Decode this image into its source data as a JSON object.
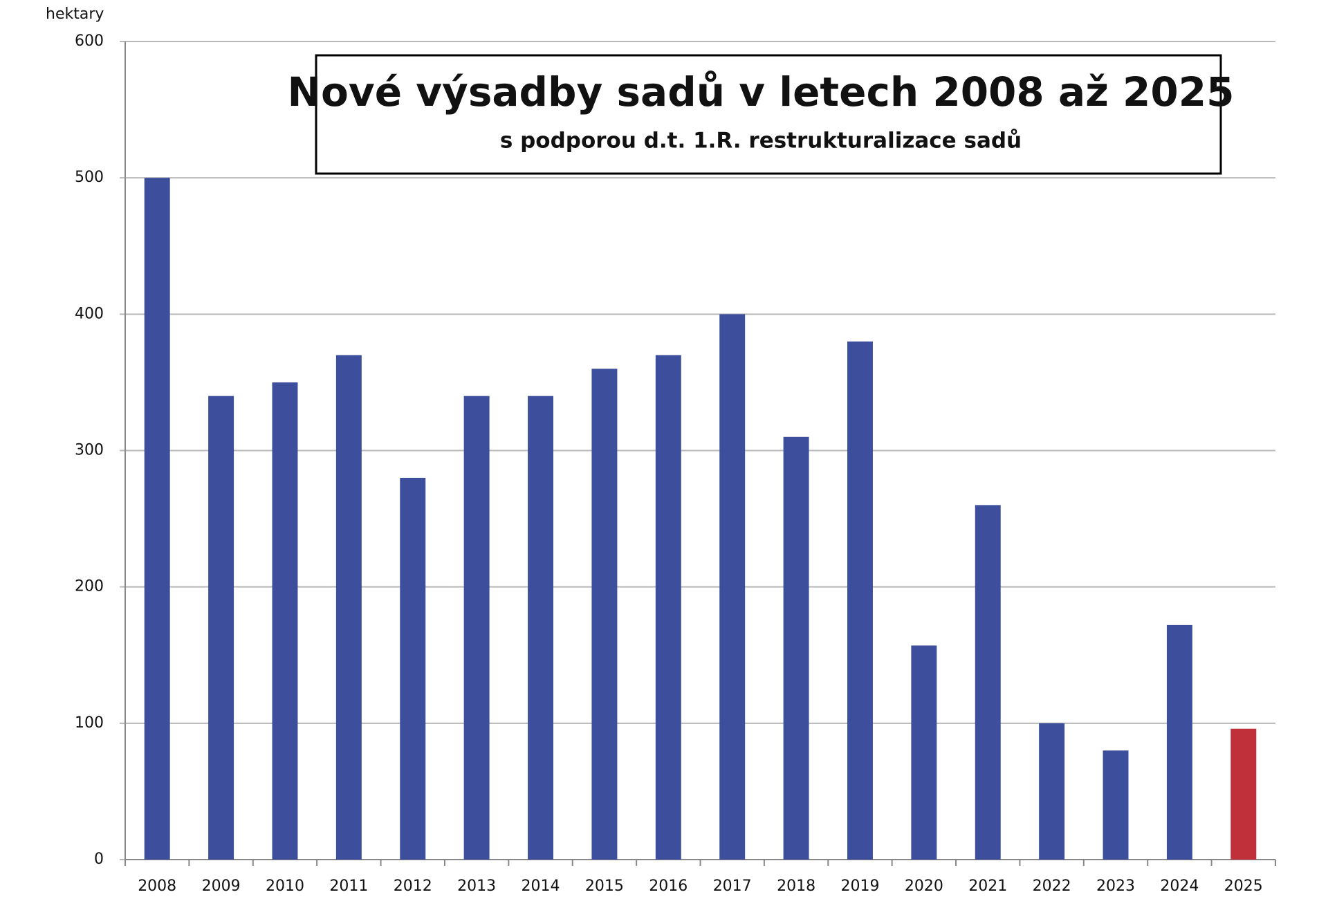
{
  "chart_data": {
    "type": "bar",
    "title": "Nové výsadby sadů v letech 2008 až 2025",
    "subtitle": "s podporou d.t. 1.R. restrukturalizace sadů",
    "y_label": "hektary",
    "categories": [
      "2008",
      "2009",
      "2010",
      "2011",
      "2012",
      "2013",
      "2014",
      "2015",
      "2016",
      "2017",
      "2018",
      "2019",
      "2020",
      "2021",
      "2022",
      "2023",
      "2024",
      "2025"
    ],
    "values": [
      500,
      340,
      350,
      370,
      280,
      340,
      340,
      360,
      370,
      400,
      310,
      380,
      157,
      260,
      100,
      80,
      172,
      96
    ],
    "colors": [
      "#3d4f9c",
      "#3d4f9c",
      "#3d4f9c",
      "#3d4f9c",
      "#3d4f9c",
      "#3d4f9c",
      "#3d4f9c",
      "#3d4f9c",
      "#3d4f9c",
      "#3d4f9c",
      "#3d4f9c",
      "#3d4f9c",
      "#3d4f9c",
      "#3d4f9c",
      "#3d4f9c",
      "#3d4f9c",
      "#3d4f9c",
      "#c0303a"
    ],
    "ylim": [
      0,
      600
    ],
    "yticks": [
      0,
      100,
      200,
      300,
      400,
      500,
      600
    ],
    "grid": true
  }
}
